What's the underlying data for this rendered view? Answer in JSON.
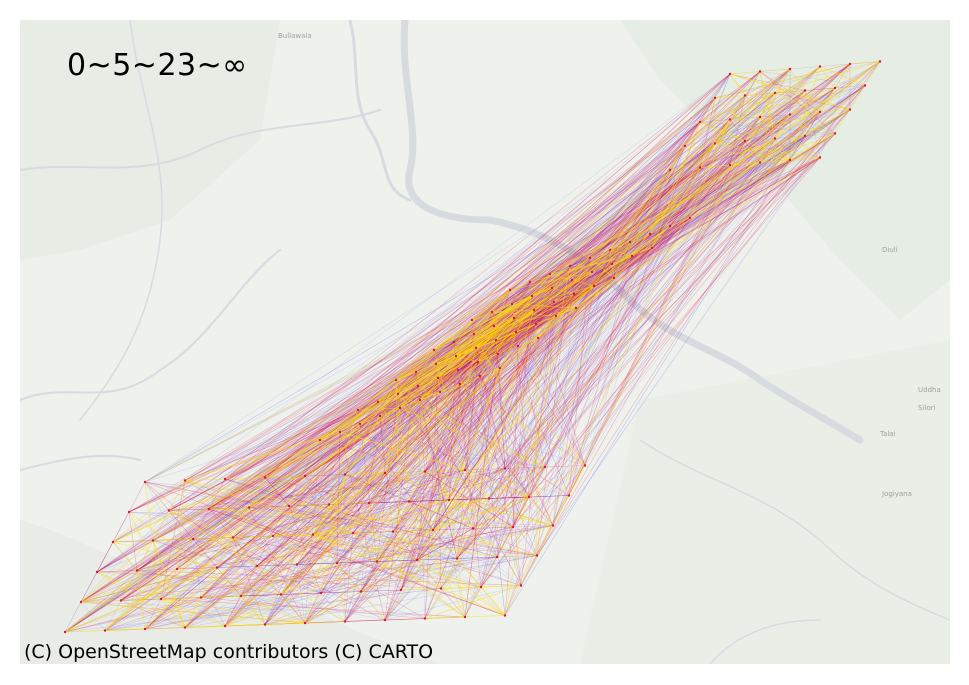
{
  "map": {
    "title": "0~5~23~∞",
    "attribution": "(C) OpenStreetMap contributors (C) CARTO",
    "basemap": "CARTO light (Positron)",
    "place_labels": [
      "Bullawala",
      "Diuli",
      "Uddha",
      "Silori",
      "Talai",
      "Jogiyana"
    ],
    "legend_classes": [
      "0",
      "5",
      "23",
      "∞"
    ],
    "colors": {
      "water": "#d6dbe0",
      "land": "#eef1ec",
      "green": "#e3ebe1",
      "low": "#3333ff",
      "mid": "#dd1144",
      "high": "#ffdd00"
    }
  }
}
